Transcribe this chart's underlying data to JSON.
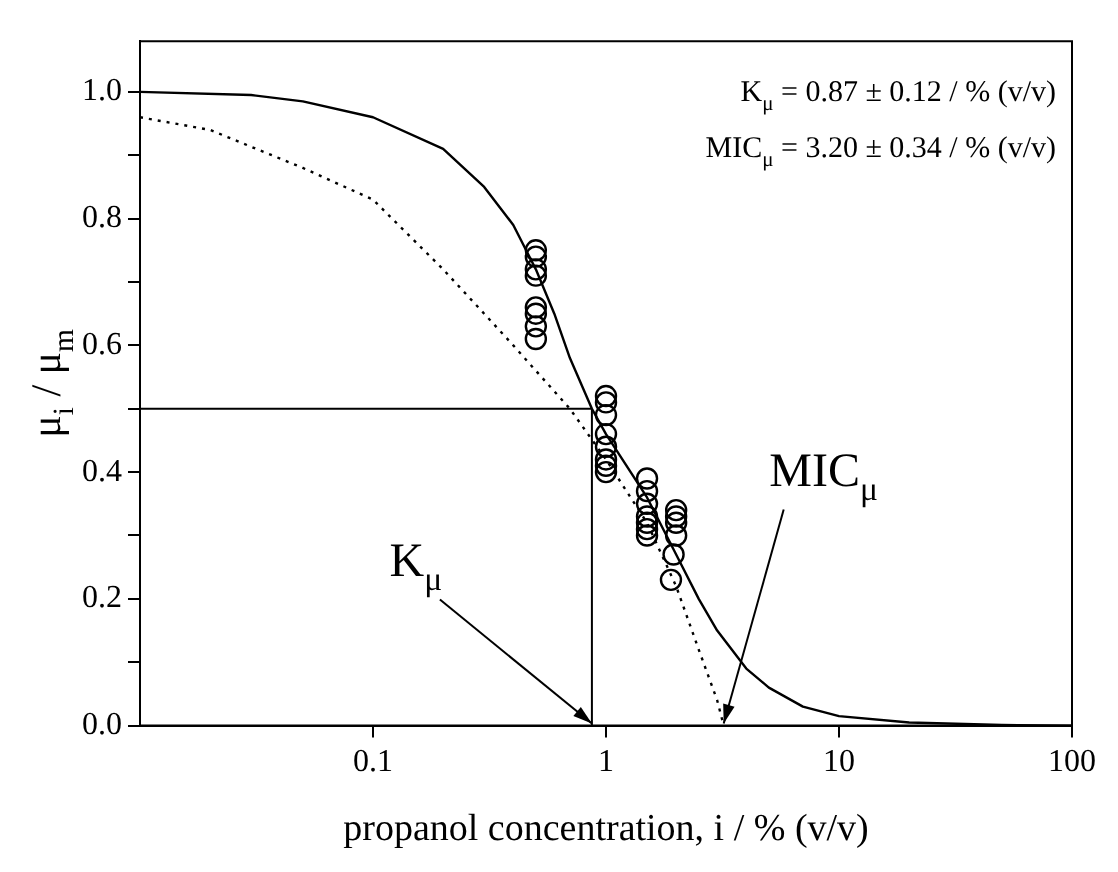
{
  "chart_data": {
    "type": "scatter",
    "xlabel": "propanol concentration, i / % (v/v)",
    "ylabel": "μ$_{i}$ / μ$_{m}$",
    "log": "x",
    "xlim": [
      0.01,
      100
    ],
    "xticks": [
      0.1,
      1,
      10,
      100
    ],
    "ylim": [
      0,
      1.08
    ],
    "yticks": [
      {
        "value": 0,
        "label": "0.0"
      },
      {
        "value": 0.1,
        "label": null
      },
      {
        "value": 0.2,
        "label": "0.2"
      },
      {
        "value": 0.3,
        "label": null
      },
      {
        "value": 0.4,
        "label": "0.4"
      },
      {
        "value": 0.5,
        "label": null
      },
      {
        "value": 0.6,
        "label": "0.6"
      },
      {
        "value": 0.7,
        "label": null
      },
      {
        "value": 0.8,
        "label": "0.8"
      },
      {
        "value": 0.9,
        "label": null
      },
      {
        "value": 1,
        "label": "1.0"
      }
    ],
    "grid": false,
    "legend": false,
    "marker": "circle",
    "series": [
      {
        "type": "scatter",
        "color": "#000000",
        "x": [
          0.5,
          0.5,
          0.5,
          0.5,
          0.5,
          0.5,
          0.5,
          0.5,
          1,
          1,
          1,
          1,
          1,
          1,
          1,
          1,
          1.5,
          1.5,
          1.5,
          1.5,
          1.5,
          1.5,
          1.5,
          2,
          2,
          2,
          2,
          1.95,
          1.9
        ],
        "values": [
          0.75,
          0.74,
          0.72,
          0.71,
          0.66,
          0.65,
          0.63,
          0.61,
          0.52,
          0.51,
          0.49,
          0.46,
          0.44,
          0.42,
          0.41,
          0.4,
          0.39,
          0.37,
          0.35,
          0.33,
          0.32,
          0.31,
          0.3,
          0.34,
          0.33,
          0.32,
          0.3,
          0.27,
          0.23
        ]
      },
      {
        "type": "line",
        "color": "#000000",
        "line_style": "solid",
        "marker": "none",
        "x": [
          0.01,
          0.03,
          0.05,
          0.1,
          0.2,
          0.3,
          0.4,
          0.5,
          0.6,
          0.7,
          0.87,
          1,
          1.5,
          2,
          2.5,
          3,
          4,
          5,
          7,
          10,
          20,
          50,
          100
        ],
        "values": [
          1,
          0.995,
          0.985,
          0.96,
          0.91,
          0.85,
          0.79,
          0.72,
          0.65,
          0.58,
          0.5,
          0.46,
          0.36,
          0.27,
          0.2,
          0.15,
          0.09,
          0.06,
          0.03,
          0.015,
          0.005,
          0.001,
          0
        ]
      },
      {
        "type": "line",
        "color": "#000000",
        "line_style": "dotted",
        "marker": "none",
        "x": [
          0.01,
          0.02,
          0.05,
          0.1,
          0.2,
          0.3,
          0.4,
          0.5,
          0.7,
          1,
          1.5,
          2,
          2.5,
          3,
          3.2
        ],
        "values": [
          0.96,
          0.94,
          0.88,
          0.83,
          0.72,
          0.65,
          0.6,
          0.56,
          0.5,
          0.42,
          0.32,
          0.22,
          0.12,
          0.04,
          0
        ]
      }
    ],
    "ref_lines": [
      {
        "axis": "y",
        "value": 0.5,
        "color": "#000000"
      },
      {
        "axis": "x",
        "value": 0.87,
        "color": "#000000"
      }
    ],
    "annotations": [
      "K$_{μ}$ = 0.87 ± 0.12 / % (v/v)",
      "MIC$_{μ}$ = 3.20 ± 0.34 / % (v/v)",
      {
        "text": "K$_{μ}$",
        "x": 0.87,
        "y": 0
      },
      {
        "text": "MIC$_{μ}$",
        "x": 3.2,
        "y": 0
      }
    ]
  }
}
